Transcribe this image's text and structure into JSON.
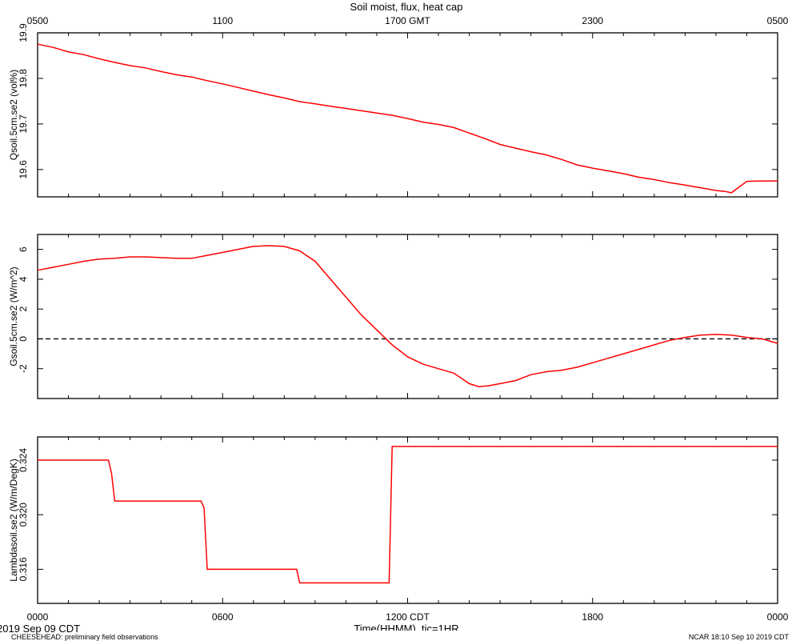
{
  "title": "Soil moist, flux, heat cap",
  "top_axis": {
    "tick_labels": [
      "0500",
      "1100",
      "1700 GMT",
      "2300",
      "0500"
    ]
  },
  "bottom_axis": {
    "tick_labels": [
      "0000",
      "0600",
      "1200 CDT",
      "1800",
      "0000"
    ],
    "xlabel": "Time(HHMM), tic=1HR",
    "start_date": "2019 Sep 09 CDT"
  },
  "footer": {
    "left": "CHEESEHEAD: preliminary field observations",
    "right": "NCAR 18:10 Sep 10 2019 CDT"
  },
  "colors": {
    "series": "#ff0000",
    "axis": "#000000",
    "zero_line": "#000000"
  },
  "chart_data": [
    {
      "type": "line",
      "ylabel": "Qsoil.5cm.se2 (vol%)",
      "xlim": [
        0,
        24
      ],
      "ylim": [
        19.54,
        19.9
      ],
      "yticks": [
        19.6,
        19.7,
        19.8,
        19.9
      ],
      "ytick_labels": [
        "19.6",
        "19.7",
        "19.8",
        "19.9"
      ],
      "grid": false,
      "series": [
        {
          "x": [
            0,
            0.5,
            1,
            1.5,
            2,
            2.5,
            3,
            3.5,
            4,
            4.5,
            5,
            5.5,
            6,
            6.5,
            7,
            7.5,
            8,
            8.5,
            9,
            9.5,
            10,
            10.5,
            11,
            11.5,
            12,
            12.5,
            13,
            13.5,
            14,
            14.5,
            15,
            15.5,
            16,
            16.5,
            17,
            17.5,
            18,
            18.5,
            19,
            19.5,
            20,
            20.5,
            21,
            21.5,
            22,
            22.3,
            22.5,
            23,
            23.5,
            24
          ],
          "y": [
            19.875,
            19.868,
            19.858,
            19.852,
            19.843,
            19.835,
            19.828,
            19.823,
            19.815,
            19.808,
            19.803,
            19.795,
            19.788,
            19.78,
            19.772,
            19.764,
            19.757,
            19.749,
            19.744,
            19.739,
            19.734,
            19.729,
            19.724,
            19.719,
            19.712,
            19.704,
            19.699,
            19.692,
            19.68,
            19.668,
            19.655,
            19.647,
            19.639,
            19.632,
            19.622,
            19.61,
            19.603,
            19.597,
            19.591,
            19.583,
            19.578,
            19.571,
            19.566,
            19.56,
            19.554,
            19.552,
            19.549,
            19.574,
            19.575,
            19.575
          ]
        }
      ]
    },
    {
      "type": "line",
      "ylabel": "Gsoil.5cm.se2 (W/m^2)",
      "xlim": [
        0,
        24
      ],
      "ylim": [
        -4,
        7
      ],
      "yticks": [
        -2,
        0,
        2,
        4,
        6
      ],
      "ytick_labels": [
        "-2",
        "0",
        "2",
        "4",
        "6"
      ],
      "zero_line": true,
      "grid": false,
      "series": [
        {
          "x": [
            0,
            0.5,
            1,
            1.5,
            2,
            2.5,
            3,
            3.5,
            4,
            4.5,
            5,
            5.5,
            6,
            6.5,
            7,
            7.5,
            8,
            8.5,
            9,
            9.5,
            10,
            10.5,
            11,
            11.5,
            12,
            12.5,
            13,
            13.5,
            14,
            14.3,
            14.6,
            15,
            15.5,
            16,
            16.5,
            17,
            17.5,
            18,
            18.5,
            19,
            19.5,
            20,
            20.5,
            21,
            21.5,
            22,
            22.5,
            23,
            23.5,
            24
          ],
          "y": [
            4.6,
            4.8,
            5.0,
            5.2,
            5.35,
            5.4,
            5.5,
            5.5,
            5.45,
            5.4,
            5.4,
            5.6,
            5.8,
            6.0,
            6.2,
            6.25,
            6.2,
            5.9,
            5.2,
            4.0,
            2.8,
            1.6,
            0.6,
            -0.4,
            -1.2,
            -1.7,
            -2.0,
            -2.3,
            -3.0,
            -3.2,
            -3.15,
            -3.0,
            -2.8,
            -2.4,
            -2.2,
            -2.1,
            -1.9,
            -1.6,
            -1.3,
            -1.0,
            -0.7,
            -0.4,
            -0.1,
            0.1,
            0.25,
            0.3,
            0.25,
            0.1,
            0.0,
            -0.3
          ]
        }
      ]
    },
    {
      "type": "line",
      "ylabel": "Lambdasoil.se2 (W/m/DegK)",
      "xlim": [
        0,
        24
      ],
      "ylim": [
        0.3135,
        0.3257
      ],
      "yticks": [
        0.316,
        0.32,
        0.324
      ],
      "ytick_labels": [
        "0.316",
        "0.320",
        "0.324"
      ],
      "grid": false,
      "series": [
        {
          "x": [
            0,
            2.3,
            2.4,
            2.5,
            5.3,
            5.4,
            5.5,
            8.4,
            8.5,
            8.6,
            11.4,
            11.5,
            24
          ],
          "y": [
            0.324,
            0.324,
            0.323,
            0.321,
            0.321,
            0.3205,
            0.316,
            0.316,
            0.315,
            0.315,
            0.315,
            0.325,
            0.325
          ]
        }
      ]
    }
  ]
}
